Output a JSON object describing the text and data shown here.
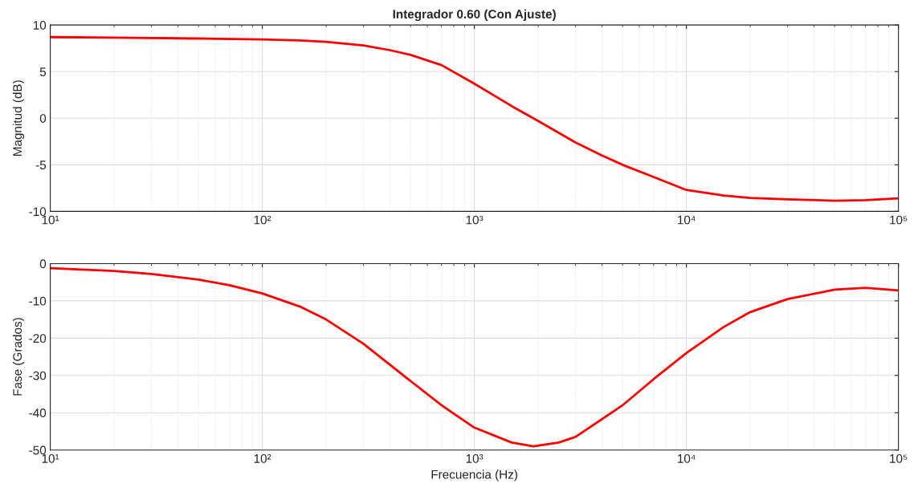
{
  "chart_data": [
    {
      "type": "line",
      "title": "Integrador 0.60 (Con Ajuste)",
      "ylabel": "Magnitud (dB)",
      "log": "x",
      "grid": true,
      "x": [
        10,
        20,
        50,
        100,
        150,
        200,
        300,
        400,
        500,
        700,
        1000,
        1500,
        2000,
        3000,
        4000,
        5000,
        7000,
        10000,
        15000,
        20000,
        30000,
        50000,
        70000,
        100000
      ],
      "series": [
        {
          "color": "#ff0000",
          "values": [
            8.7,
            8.65,
            8.55,
            8.45,
            8.35,
            8.2,
            7.8,
            7.3,
            6.8,
            5.7,
            3.7,
            1.3,
            -0.3,
            -2.6,
            -4.0,
            -5.0,
            -6.3,
            -7.7,
            -8.3,
            -8.55,
            -8.7,
            -8.85,
            -8.8,
            -8.6
          ]
        }
      ],
      "xlim": [
        10,
        100000
      ],
      "ylim": [
        -10,
        10
      ],
      "xticks": [
        {
          "value": 10,
          "label": "10¹"
        },
        {
          "value": 100,
          "label": "10²"
        },
        {
          "value": 1000,
          "label": "10³"
        },
        {
          "value": 10000,
          "label": "10⁴"
        },
        {
          "value": 100000,
          "label": "10⁵"
        }
      ],
      "yticks": [
        -10,
        -5,
        0,
        5,
        10
      ]
    },
    {
      "type": "line",
      "xlabel": "Frecuencia (Hz)",
      "ylabel": "Fase (Grados)",
      "log": "x",
      "grid": true,
      "x": [
        10,
        20,
        30,
        50,
        70,
        100,
        150,
        200,
        300,
        500,
        700,
        1000,
        1500,
        1900,
        2500,
        3000,
        5000,
        7000,
        10000,
        15000,
        20000,
        30000,
        50000,
        70000,
        100000
      ],
      "series": [
        {
          "color": "#ff0000",
          "values": [
            -1.2,
            -2,
            -2.8,
            -4.3,
            -5.8,
            -8,
            -11.5,
            -15,
            -21.5,
            -31.5,
            -38,
            -44,
            -48,
            -49,
            -48,
            -46.5,
            -38,
            -31,
            -24,
            -17,
            -13,
            -9.5,
            -7,
            -6.5,
            -7.2
          ]
        }
      ],
      "xlim": [
        10,
        100000
      ],
      "ylim": [
        -50,
        0
      ],
      "xticks": [
        {
          "value": 10,
          "label": "10¹"
        },
        {
          "value": 100,
          "label": "10²"
        },
        {
          "value": 1000,
          "label": "10³"
        },
        {
          "value": 10000,
          "label": "10⁴"
        },
        {
          "value": 100000,
          "label": "10⁵"
        }
      ],
      "yticks": [
        -50,
        -40,
        -30,
        -20,
        -10,
        0
      ]
    }
  ]
}
